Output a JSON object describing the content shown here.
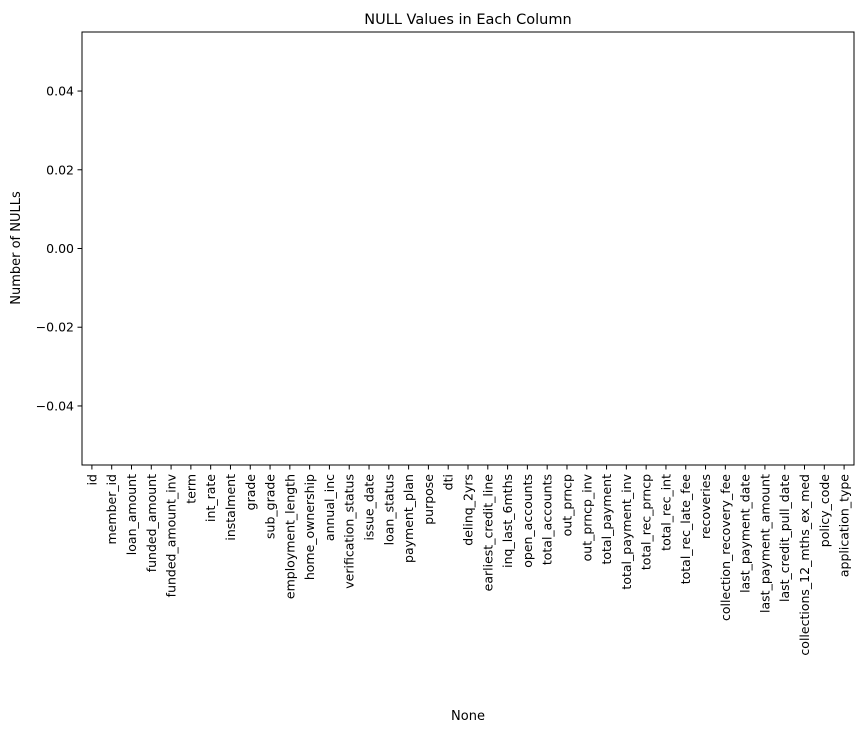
{
  "chart_data": {
    "type": "bar",
    "title": "NULL Values in Each Column",
    "xlabel": "None",
    "ylabel": "Number of NULLs",
    "ylim": [
      -0.055,
      0.055
    ],
    "yticks": [
      0.04,
      0.02,
      0.0,
      -0.02,
      -0.04
    ],
    "ytick_labels": [
      "0.04",
      "0.02",
      "0.00",
      "−0.02",
      "−0.04"
    ],
    "grid": false,
    "legend": "none",
    "categories": [
      "id",
      "member_id",
      "loan_amount",
      "funded_amount",
      "funded_amount_inv",
      "term",
      "int_rate",
      "instalment",
      "grade",
      "sub_grade",
      "employment_length",
      "home_ownership",
      "annual_inc",
      "verification_status",
      "issue_date",
      "loan_status",
      "payment_plan",
      "purpose",
      "dti",
      "delinq_2yrs",
      "earliest_credit_line",
      "inq_last_6mths",
      "open_accounts",
      "total_accounts",
      "out_prncp",
      "out_prncp_inv",
      "total_payment",
      "total_payment_inv",
      "total_rec_prncp",
      "total_rec_int",
      "total_rec_late_fee",
      "recoveries",
      "collection_recovery_fee",
      "last_payment_date",
      "last_payment_amount",
      "last_credit_pull_date",
      "collections_12_mths_ex_med",
      "policy_code",
      "application_type"
    ],
    "values": [
      0,
      0,
      0,
      0,
      0,
      0,
      0,
      0,
      0,
      0,
      0,
      0,
      0,
      0,
      0,
      0,
      0,
      0,
      0,
      0,
      0,
      0,
      0,
      0,
      0,
      0,
      0,
      0,
      0,
      0,
      0,
      0,
      0,
      0,
      0,
      0,
      0,
      0,
      0
    ]
  }
}
